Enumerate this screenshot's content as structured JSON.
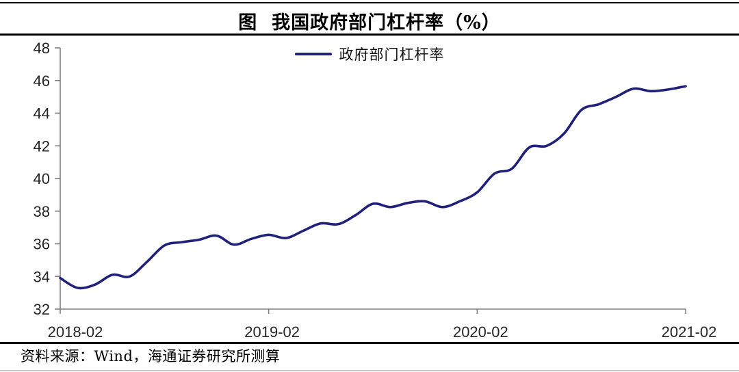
{
  "title": "图  我国政府部门杠杆率（%）",
  "legend": {
    "label": "政府部门杠杆率",
    "line_color": "#21217B"
  },
  "source": "资料来源：Wind，海通证券研究所测算",
  "chart_data": {
    "type": "line",
    "title": "图 我国政府部门杠杆率（%）",
    "series_name": "政府部门杠杆率",
    "x": [
      "2018-02",
      "2018-03",
      "2018-04",
      "2018-05",
      "2018-06",
      "2018-07",
      "2018-08",
      "2018-09",
      "2018-10",
      "2018-11",
      "2018-12",
      "2019-01",
      "2019-02",
      "2019-03",
      "2019-04",
      "2019-05",
      "2019-06",
      "2019-07",
      "2019-08",
      "2019-09",
      "2019-10",
      "2019-11",
      "2019-12",
      "2020-01",
      "2020-02",
      "2020-03",
      "2020-04",
      "2020-05",
      "2020-06",
      "2020-07",
      "2020-08",
      "2020-09",
      "2020-10",
      "2020-11",
      "2020-12",
      "2021-01",
      "2021-02"
    ],
    "values": [
      33.9,
      33.3,
      33.5,
      34.1,
      34.0,
      34.9,
      35.9,
      36.1,
      36.25,
      36.5,
      35.95,
      36.3,
      36.55,
      36.35,
      36.8,
      37.25,
      37.2,
      37.75,
      38.45,
      38.25,
      38.5,
      38.6,
      38.25,
      38.6,
      39.15,
      40.3,
      40.6,
      41.9,
      42.0,
      42.75,
      44.2,
      44.55,
      45.0,
      45.5,
      45.35,
      45.45,
      45.65
    ],
    "x_tick_labels": [
      "2018-02",
      "2019-02",
      "2020-02",
      "2021-02"
    ],
    "y_ticks": [
      32,
      34,
      36,
      38,
      40,
      42,
      44,
      46,
      48
    ],
    "ylim": [
      32,
      48
    ],
    "grid": "off",
    "legend_position": "top-center",
    "xlabel": "",
    "ylabel": "",
    "line_color": "#21217B",
    "axis_color": "#7f7f7f",
    "label_color": "#262626"
  }
}
